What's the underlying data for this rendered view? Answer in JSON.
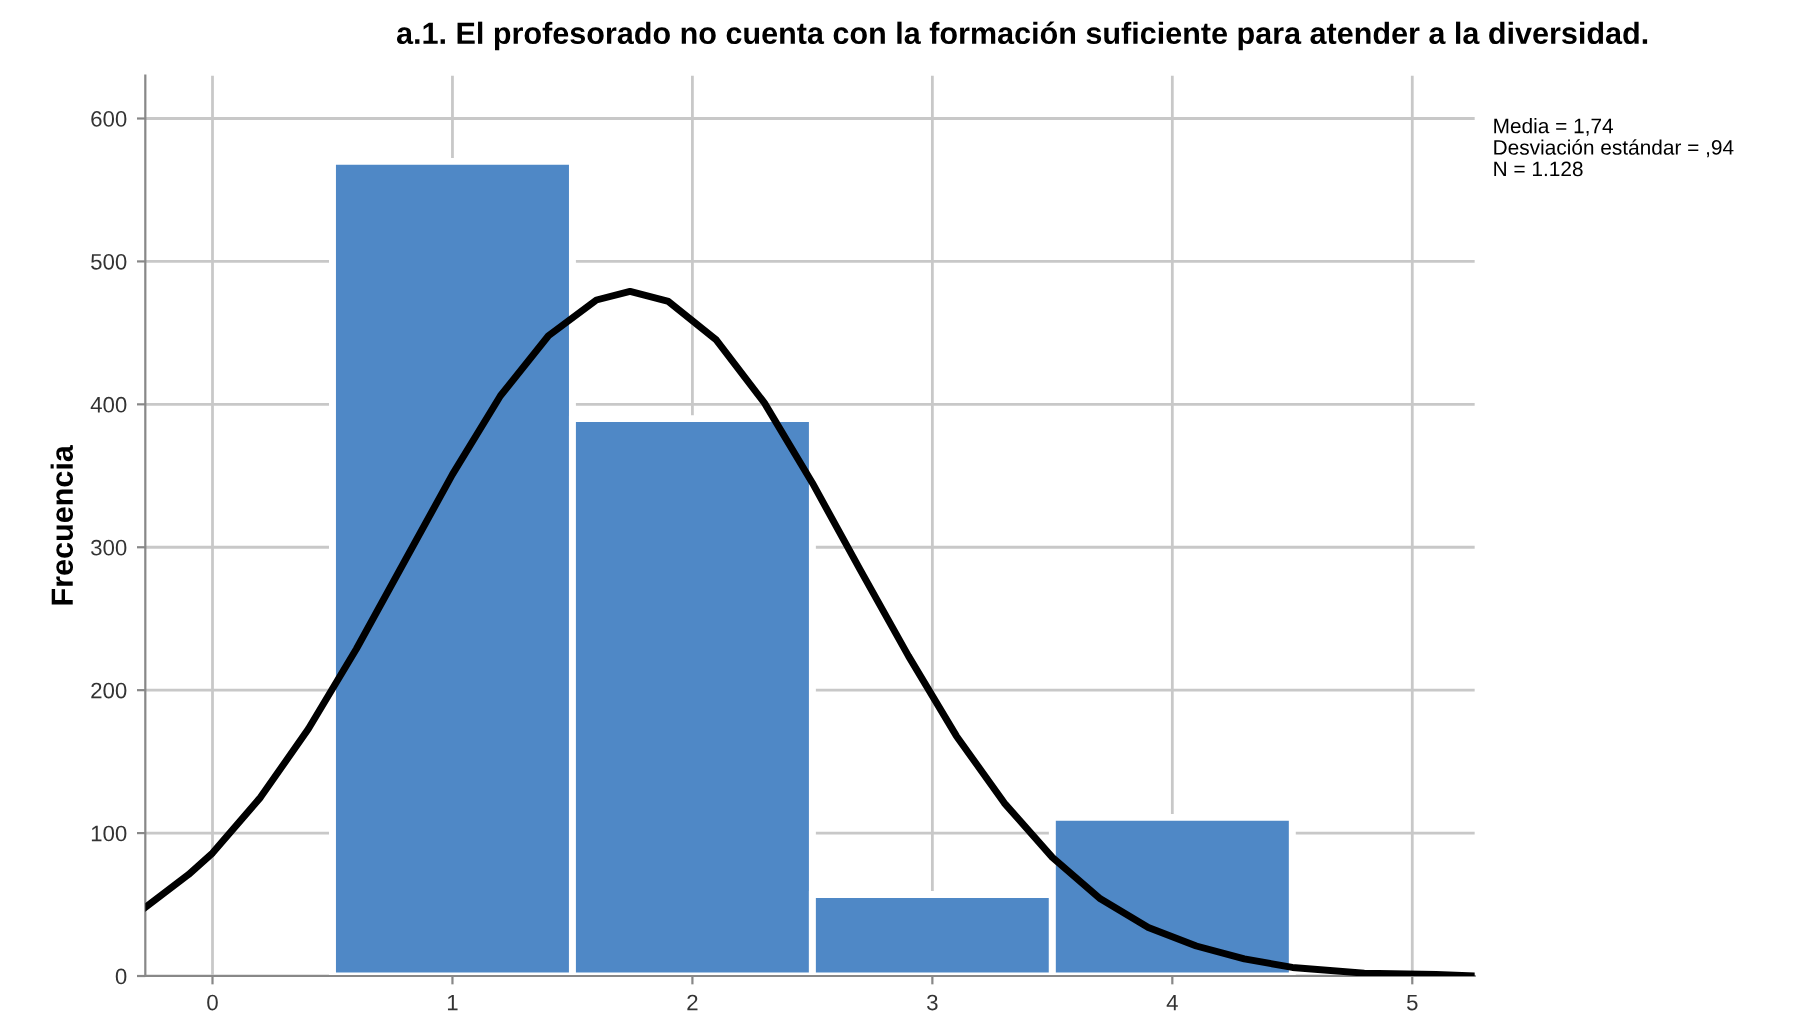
{
  "chart_data": {
    "type": "histogram",
    "title": "a.1. El profesorado no cuenta con la formación suficiente para atender a la diversidad.",
    "ylabel": "Frecuencia",
    "series": [
      {
        "color": "#4f88c6",
        "bins": [
          0.5,
          1.5,
          2.5,
          3.5,
          4.5
        ],
        "values": [
          570,
          390,
          57,
          111
        ]
      },
      {
        "type": "line",
        "color": "#000000",
        "x": [
          -0.28,
          -0.1,
          0,
          0.2,
          0.4,
          0.6,
          0.8,
          1.0,
          1.2,
          1.4,
          1.6,
          1.74,
          1.9,
          2.1,
          2.3,
          2.5,
          2.7,
          2.9,
          3.1,
          3.3,
          3.5,
          3.7,
          3.9,
          4.1,
          4.3,
          4.5,
          4.8,
          5.1,
          5.26
        ],
        "values": [
          48,
          71,
          86,
          125,
          173,
          229,
          290,
          351,
          406,
          448,
          473,
          479,
          472,
          445,
          401,
          345,
          284,
          224,
          168,
          121,
          83,
          54,
          34,
          21,
          12,
          6,
          2,
          1,
          0
        ]
      }
    ],
    "annotations": [
      "Media = 1,74",
      "Desviación estándar = ,94",
      "N = 1.128"
    ],
    "xlim": [
      -0.28,
      5.26
    ],
    "ylim": [
      0,
      630
    ],
    "xticks": [
      0,
      1,
      2,
      3,
      4,
      5
    ],
    "yticks": [
      0,
      100,
      200,
      300,
      400,
      500,
      600
    ],
    "grid": true,
    "line_style": "solid",
    "marker": "none"
  }
}
